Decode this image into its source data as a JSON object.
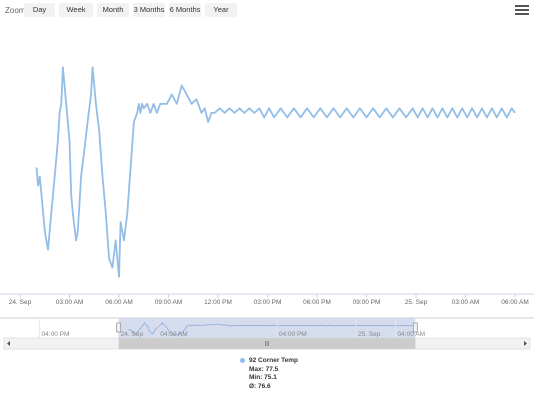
{
  "zoom": {
    "label": "Zoom",
    "buttons": [
      {
        "id": "day",
        "label": "Day"
      },
      {
        "id": "week",
        "label": "Week"
      },
      {
        "id": "month",
        "label": "Month"
      },
      {
        "id": "3months",
        "label": "3 Months"
      },
      {
        "id": "6months",
        "label": "6 Months"
      },
      {
        "id": "year",
        "label": "Year"
      }
    ]
  },
  "menu_icon": "hamburger-menu-icon",
  "colors": {
    "series": "#92bee7",
    "navigator_fill": "#ccd6eb",
    "grid": "#e6e6e6",
    "axis_text": "#666666"
  },
  "chart_data": {
    "type": "line",
    "series": [
      {
        "name": "92 Corner Temp",
        "x": [
          "24 Sep 01:00",
          "24 Sep 01:06",
          "24 Sep 01:12",
          "24 Sep 01:18",
          "24 Sep 01:30",
          "24 Sep 01:42",
          "24 Sep 01:54",
          "24 Sep 02:06",
          "24 Sep 02:18",
          "24 Sep 02:24",
          "24 Sep 02:30",
          "24 Sep 02:36",
          "24 Sep 02:48",
          "24 Sep 03:00",
          "24 Sep 03:06",
          "24 Sep 03:12",
          "24 Sep 03:24",
          "24 Sep 03:30",
          "24 Sep 03:42",
          "24 Sep 03:54",
          "24 Sep 04:06",
          "24 Sep 04:18",
          "24 Sep 04:24",
          "24 Sep 04:36",
          "24 Sep 04:48",
          "24 Sep 05:00",
          "24 Sep 05:12",
          "24 Sep 05:24",
          "24 Sep 05:36",
          "24 Sep 05:48",
          "24 Sep 06:00",
          "24 Sep 06:06",
          "24 Sep 06:18",
          "24 Sep 06:30",
          "24 Sep 06:42",
          "24 Sep 06:54",
          "24 Sep 07:06",
          "24 Sep 07:12",
          "24 Sep 07:18",
          "24 Sep 07:24",
          "24 Sep 07:30",
          "24 Sep 07:42",
          "24 Sep 07:54",
          "24 Sep 08:06",
          "24 Sep 08:18",
          "24 Sep 08:30",
          "24 Sep 08:42",
          "24 Sep 08:54",
          "24 Sep 09:12",
          "24 Sep 09:30",
          "24 Sep 09:48",
          "24 Sep 10:06",
          "24 Sep 10:24",
          "24 Sep 10:42",
          "24 Sep 11:00",
          "24 Sep 11:12",
          "24 Sep 11:24",
          "24 Sep 11:36",
          "24 Sep 11:48",
          "24 Sep 12:06",
          "24 Sep 12:24",
          "24 Sep 12:42",
          "24 Sep 13:00",
          "24 Sep 13:18",
          "24 Sep 13:36",
          "24 Sep 13:54",
          "24 Sep 14:12",
          "24 Sep 14:30",
          "24 Sep 14:48",
          "24 Sep 15:06",
          "24 Sep 15:24",
          "24 Sep 15:48",
          "24 Sep 16:12",
          "24 Sep 16:36",
          "24 Sep 17:00",
          "24 Sep 17:24",
          "24 Sep 17:48",
          "24 Sep 18:12",
          "24 Sep 18:36",
          "24 Sep 19:00",
          "24 Sep 19:24",
          "24 Sep 19:48",
          "24 Sep 20:12",
          "24 Sep 20:36",
          "24 Sep 21:00",
          "24 Sep 21:24",
          "24 Sep 21:48",
          "24 Sep 22:12",
          "24 Sep 22:36",
          "24 Sep 23:00",
          "24 Sep 23:24",
          "24 Sep 23:48",
          "25 Sep 00:06",
          "25 Sep 00:24",
          "25 Sep 00:42",
          "25 Sep 01:00",
          "25 Sep 01:18",
          "25 Sep 01:36",
          "25 Sep 01:54",
          "25 Sep 02:12",
          "25 Sep 02:30",
          "25 Sep 02:48",
          "25 Sep 03:06",
          "25 Sep 03:24",
          "25 Sep 03:42",
          "25 Sep 04:00",
          "25 Sep 04:18",
          "25 Sep 04:36",
          "25 Sep 04:54",
          "25 Sep 05:12",
          "25 Sep 05:30",
          "25 Sep 05:48",
          "25 Sep 06:00"
        ],
        "y": [
          76.4,
          76.2,
          76.3,
          76.1,
          75.7,
          75.5,
          75.9,
          76.3,
          76.7,
          77.0,
          77.1,
          77.5,
          77.1,
          76.7,
          76.1,
          75.9,
          75.6,
          75.7,
          76.3,
          76.6,
          76.9,
          77.2,
          77.5,
          77.1,
          76.8,
          76.3,
          75.9,
          75.4,
          75.3,
          75.6,
          75.2,
          75.8,
          75.6,
          75.9,
          76.4,
          76.9,
          77.0,
          77.1,
          77.0,
          77.1,
          77.05,
          77.1,
          77.0,
          77.1,
          77.0,
          77.1,
          77.1,
          77.1,
          77.2,
          77.1,
          77.3,
          77.2,
          77.1,
          77.15,
          77.0,
          77.05,
          76.9,
          77.0,
          77.0,
          77.05,
          77.0,
          77.05,
          77.0,
          77.05,
          77.0,
          77.05,
          77.0,
          77.05,
          76.95,
          77.05,
          76.95,
          77.05,
          76.95,
          77.05,
          76.95,
          77.05,
          76.95,
          77.05,
          76.95,
          77.05,
          76.95,
          77.05,
          76.95,
          77.05,
          76.95,
          77.05,
          76.95,
          77.05,
          76.95,
          77.05,
          76.95,
          77.05,
          76.95,
          77.05,
          76.95,
          77.05,
          76.95,
          77.05,
          76.95,
          77.05,
          76.95,
          77.05,
          76.95,
          77.05,
          76.95,
          77.05,
          76.95,
          77.05,
          76.95,
          77.05,
          76.95,
          77.05,
          77.0
        ]
      }
    ],
    "x_ticks": [
      "24. Sep",
      "03:00 AM",
      "06:00 AM",
      "09:00 AM",
      "12:00 PM",
      "03:00 PM",
      "06:00 PM",
      "09:00 PM",
      "25. Sep",
      "03:00 AM",
      "06:00 AM"
    ],
    "navigator_ticks": [
      "04:00 PM",
      "24. Sep",
      "04:00 AM",
      "04:00 PM",
      "25. Sep",
      "04:00 AM"
    ],
    "ylim": [
      75.0,
      77.8
    ]
  },
  "legend": {
    "name": "92 Corner Temp",
    "max": "Max: 77.5",
    "min": "Min: 75.1",
    "avg": "Ø: 76.6"
  }
}
